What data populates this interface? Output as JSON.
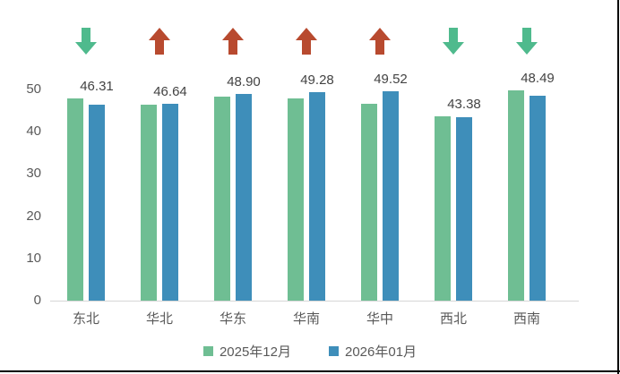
{
  "chart_data": {
    "type": "bar",
    "title": "",
    "categories": [
      "东北",
      "华北",
      "华东",
      "华南",
      "华中",
      "西北",
      "西南"
    ],
    "series": [
      {
        "name": "2025年12月",
        "color": "#6FBE93",
        "estimated": true,
        "values": [
          47.8,
          46.4,
          48.2,
          47.9,
          46.6,
          43.6,
          49.7
        ]
      },
      {
        "name": "2026年01月",
        "color": "#3E8EBA",
        "estimated": false,
        "values": [
          46.31,
          46.64,
          48.9,
          49.28,
          49.52,
          43.38,
          48.49
        ]
      }
    ],
    "value_labels": [
      "46.31",
      "46.64",
      "48.90",
      "49.28",
      "49.52",
      "43.38",
      "48.49"
    ],
    "value_labels_series": "2026年01月",
    "trend_arrows": [
      "down",
      "up",
      "up",
      "up",
      "up",
      "down",
      "down"
    ],
    "arrow_colors": {
      "up": "#B84A2F",
      "down": "#4FBA8D"
    },
    "y_ticks": [
      0,
      10,
      20,
      30,
      40,
      50
    ],
    "ylim": [
      0,
      50
    ],
    "xlabel": "",
    "ylabel": "",
    "grid": false,
    "legend_position": "bottom-center"
  },
  "legend": {
    "items": [
      {
        "label": "2025年12月",
        "color": "#6FBE93"
      },
      {
        "label": "2026年01月",
        "color": "#3E8EBA"
      }
    ]
  },
  "colors": {
    "background": "#FFFFFF",
    "axis_line": "#D6D6D6",
    "tick_text": "#595959",
    "value_text": "#434343",
    "page_border": "#000000"
  }
}
